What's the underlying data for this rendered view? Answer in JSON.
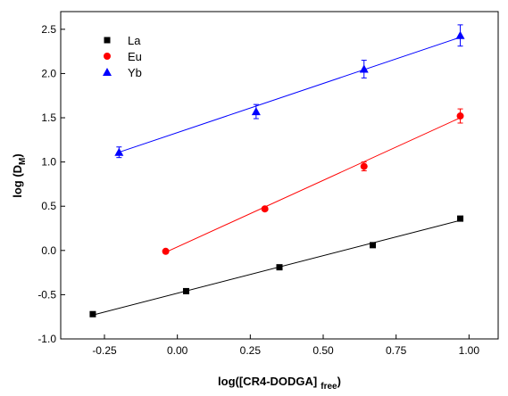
{
  "chart_data": {
    "type": "scatter",
    "title": "",
    "xlabel": {
      "main": "log([CR4-DODGA]",
      "sub": "free",
      "close": ")"
    },
    "ylabel": {
      "main": "log (D",
      "sub": "M",
      "close": ")"
    },
    "xlim": [
      -0.4,
      1.1
    ],
    "ylim": [
      -1.0,
      2.7
    ],
    "xticks": [
      -0.25,
      0.0,
      0.25,
      0.5,
      0.75,
      1.0
    ],
    "xtick_labels": [
      "-0.25",
      "0.00",
      "0.25",
      "0.50",
      "0.75",
      "1.00"
    ],
    "yticks": [
      -1.0,
      -0.5,
      0.0,
      0.5,
      1.0,
      1.5,
      2.0,
      2.5
    ],
    "ytick_labels": [
      "-1.0",
      "-0.5",
      "0.0",
      "0.5",
      "1.0",
      "1.5",
      "2.0",
      "2.5"
    ],
    "grid": false,
    "legend_position": "top-left",
    "series": [
      {
        "name": "La",
        "marker": "square",
        "color": "#000000",
        "x": [
          -0.29,
          0.03,
          0.35,
          0.67,
          0.97
        ],
        "y": [
          -0.72,
          -0.46,
          -0.19,
          0.06,
          0.36
        ],
        "yerr": [
          0.02,
          0.02,
          0.02,
          0.02,
          0.02
        ],
        "fit_line": {
          "x": [
            -0.29,
            0.97
          ],
          "y": [
            -0.73,
            0.34
          ]
        }
      },
      {
        "name": "Eu",
        "marker": "circle",
        "color": "#ff0000",
        "x": [
          -0.04,
          0.3,
          0.64,
          0.97
        ],
        "y": [
          -0.01,
          0.47,
          0.95,
          1.52
        ],
        "yerr": [
          0.02,
          0.02,
          0.05,
          0.08
        ],
        "fit_line": {
          "x": [
            -0.04,
            0.97
          ],
          "y": [
            -0.02,
            1.5
          ]
        }
      },
      {
        "name": "Yb",
        "marker": "triangle",
        "color": "#0000ff",
        "x": [
          -0.2,
          0.27,
          0.64,
          0.97
        ],
        "y": [
          1.11,
          1.57,
          2.05,
          2.43
        ],
        "yerr": [
          0.06,
          0.08,
          0.1,
          0.12
        ],
        "fit_line": {
          "x": [
            -0.2,
            0.97
          ],
          "y": [
            1.11,
            2.41
          ]
        }
      }
    ]
  }
}
